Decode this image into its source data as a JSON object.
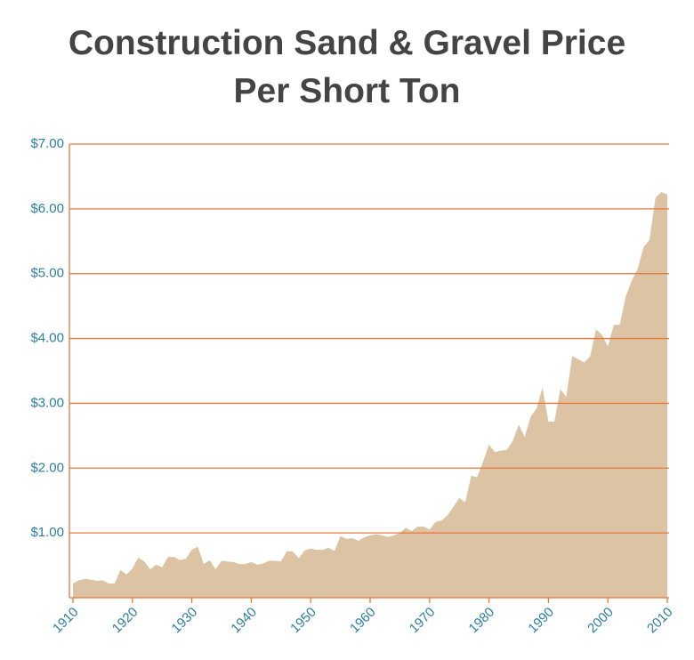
{
  "chart_data": {
    "type": "area",
    "title": "Construction Sand & Gravel Price Per Short Ton",
    "color": "#dcc3a4",
    "grid": true,
    "x": [
      1910,
      1911,
      1912,
      1913,
      1914,
      1915,
      1916,
      1917,
      1918,
      1919,
      1920,
      1921,
      1922,
      1923,
      1924,
      1925,
      1926,
      1927,
      1928,
      1929,
      1930,
      1931,
      1932,
      1933,
      1934,
      1935,
      1936,
      1937,
      1938,
      1939,
      1940,
      1941,
      1942,
      1943,
      1944,
      1945,
      1946,
      1947,
      1948,
      1949,
      1950,
      1951,
      1952,
      1953,
      1954,
      1955,
      1956,
      1957,
      1958,
      1959,
      1960,
      1961,
      1962,
      1963,
      1964,
      1965,
      1966,
      1967,
      1968,
      1969,
      1970,
      1971,
      1972,
      1973,
      1974,
      1975,
      1976,
      1977,
      1978,
      1979,
      1980,
      1981,
      1982,
      1983,
      1984,
      1985,
      1986,
      1987,
      1988,
      1989,
      1990,
      1991,
      1992,
      1993,
      1994,
      1995,
      1996,
      1997,
      1998,
      1999,
      2000,
      2001,
      2002,
      2003,
      2004,
      2005,
      2006,
      2007,
      2008,
      2009,
      2010
    ],
    "values": [
      0.22,
      0.27,
      0.29,
      0.28,
      0.26,
      0.27,
      0.22,
      0.22,
      0.43,
      0.36,
      0.45,
      0.62,
      0.56,
      0.44,
      0.51,
      0.47,
      0.63,
      0.63,
      0.58,
      0.6,
      0.74,
      0.79,
      0.52,
      0.58,
      0.44,
      0.57,
      0.56,
      0.55,
      0.52,
      0.52,
      0.55,
      0.51,
      0.53,
      0.57,
      0.57,
      0.56,
      0.72,
      0.71,
      0.61,
      0.73,
      0.76,
      0.74,
      0.74,
      0.77,
      0.72,
      0.95,
      0.91,
      0.92,
      0.88,
      0.93,
      0.96,
      0.98,
      0.96,
      0.94,
      0.96,
      1.0,
      1.08,
      1.03,
      1.1,
      1.1,
      1.05,
      1.17,
      1.19,
      1.27,
      1.4,
      1.54,
      1.47,
      1.88,
      1.86,
      2.1,
      2.36,
      2.25,
      2.27,
      2.28,
      2.42,
      2.67,
      2.48,
      2.79,
      2.92,
      3.24,
      2.72,
      2.72,
      3.22,
      3.1,
      3.73,
      3.68,
      3.63,
      3.72,
      4.14,
      4.06,
      3.88,
      4.21,
      4.21,
      4.65,
      4.89,
      5.07,
      5.41,
      5.52,
      6.17,
      6.26,
      6.22
    ],
    "xlim": [
      1910,
      2010
    ],
    "xticks": [
      1910,
      1920,
      1930,
      1940,
      1950,
      1960,
      1970,
      1980,
      1990,
      2000,
      2010
    ],
    "ylim": [
      0,
      7
    ],
    "yticks": [
      {
        "value": 1,
        "label": "$1.00"
      },
      {
        "value": 2,
        "label": "$2.00"
      },
      {
        "value": 3,
        "label": "$3.00"
      },
      {
        "value": 4,
        "label": "$4.00"
      },
      {
        "value": 5,
        "label": "$5.00"
      },
      {
        "value": 6,
        "label": "$6.00"
      },
      {
        "value": 7,
        "label": "$7.00"
      }
    ]
  }
}
